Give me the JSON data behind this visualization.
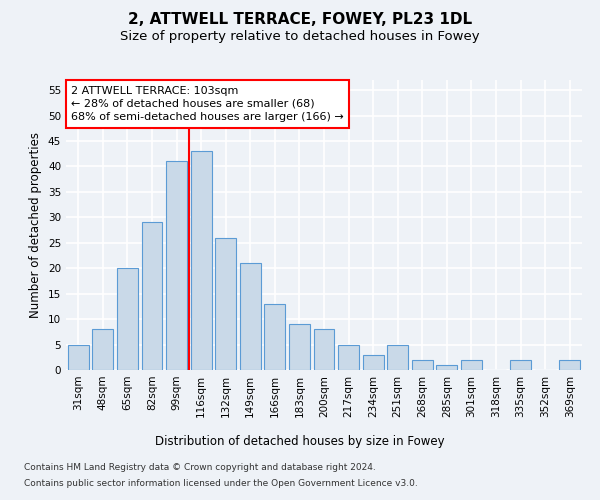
{
  "title": "2, ATTWELL TERRACE, FOWEY, PL23 1DL",
  "subtitle": "Size of property relative to detached houses in Fowey",
  "xlabel": "Distribution of detached houses by size in Fowey",
  "ylabel": "Number of detached properties",
  "bar_labels": [
    "31sqm",
    "48sqm",
    "65sqm",
    "82sqm",
    "99sqm",
    "116sqm",
    "132sqm",
    "149sqm",
    "166sqm",
    "183sqm",
    "200sqm",
    "217sqm",
    "234sqm",
    "251sqm",
    "268sqm",
    "285sqm",
    "301sqm",
    "318sqm",
    "335sqm",
    "352sqm",
    "369sqm"
  ],
  "bar_values": [
    5,
    8,
    20,
    29,
    41,
    43,
    26,
    21,
    13,
    9,
    8,
    5,
    3,
    5,
    2,
    1,
    2,
    0,
    2,
    0,
    2
  ],
  "bar_color": "#c9d9e8",
  "bar_edge_color": "#5b9bd5",
  "vline_color": "red",
  "annotation_text": "2 ATTWELL TERRACE: 103sqm\n← 28% of detached houses are smaller (68)\n68% of semi-detached houses are larger (166) →",
  "annotation_box_color": "white",
  "annotation_box_edge_color": "red",
  "ylim": [
    0,
    57
  ],
  "yticks": [
    0,
    5,
    10,
    15,
    20,
    25,
    30,
    35,
    40,
    45,
    50,
    55
  ],
  "background_color": "#eef2f7",
  "plot_bg_color": "#eef2f7",
  "grid_color": "white",
  "footer_line1": "Contains HM Land Registry data © Crown copyright and database right 2024.",
  "footer_line2": "Contains public sector information licensed under the Open Government Licence v3.0.",
  "title_fontsize": 11,
  "subtitle_fontsize": 9.5,
  "axis_label_fontsize": 8.5,
  "tick_fontsize": 7.5,
  "annotation_fontsize": 8,
  "footer_fontsize": 6.5
}
